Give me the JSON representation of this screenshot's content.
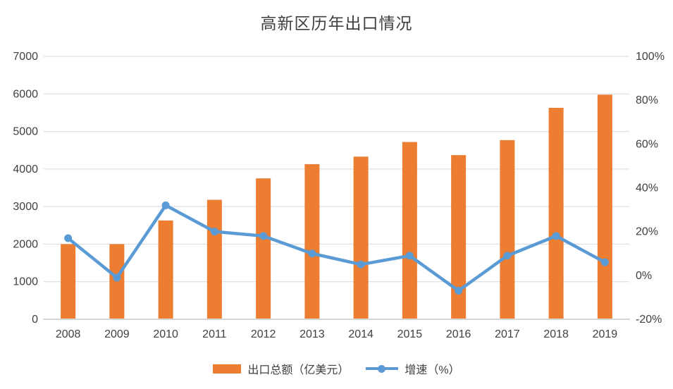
{
  "chart_data": {
    "type": "bar+line",
    "title": "高新区历年出口情况",
    "categories": [
      "2008",
      "2009",
      "2010",
      "2011",
      "2012",
      "2013",
      "2014",
      "2015",
      "2016",
      "2017",
      "2018",
      "2019"
    ],
    "series": [
      {
        "name": "出口总额（亿美元）",
        "type": "bar",
        "axis": "left",
        "color": "#ED7D31",
        "values": [
          2000,
          2000,
          2630,
          3180,
          3750,
          4130,
          4330,
          4720,
          4370,
          4770,
          5630,
          5980
        ]
      },
      {
        "name": "增速（%）",
        "type": "line",
        "axis": "right",
        "color": "#5B9BD5",
        "values": [
          17,
          -1,
          32,
          20,
          18,
          10,
          5,
          9,
          -7,
          9,
          18,
          6
        ]
      }
    ],
    "left_axis": {
      "min": 0,
      "max": 7000,
      "step": 1000,
      "ticks": [
        "0",
        "1000",
        "2000",
        "3000",
        "4000",
        "5000",
        "6000",
        "7000"
      ]
    },
    "right_axis": {
      "min": -20,
      "max": 100,
      "step": 20,
      "ticks": [
        "-20%",
        "0%",
        "20%",
        "40%",
        "60%",
        "80%",
        "100%"
      ]
    },
    "colors": {
      "grid": "#D9D9D9",
      "axis": "#D6D6D6",
      "text": "#404040"
    },
    "grid": true,
    "legend_position": "bottom"
  }
}
